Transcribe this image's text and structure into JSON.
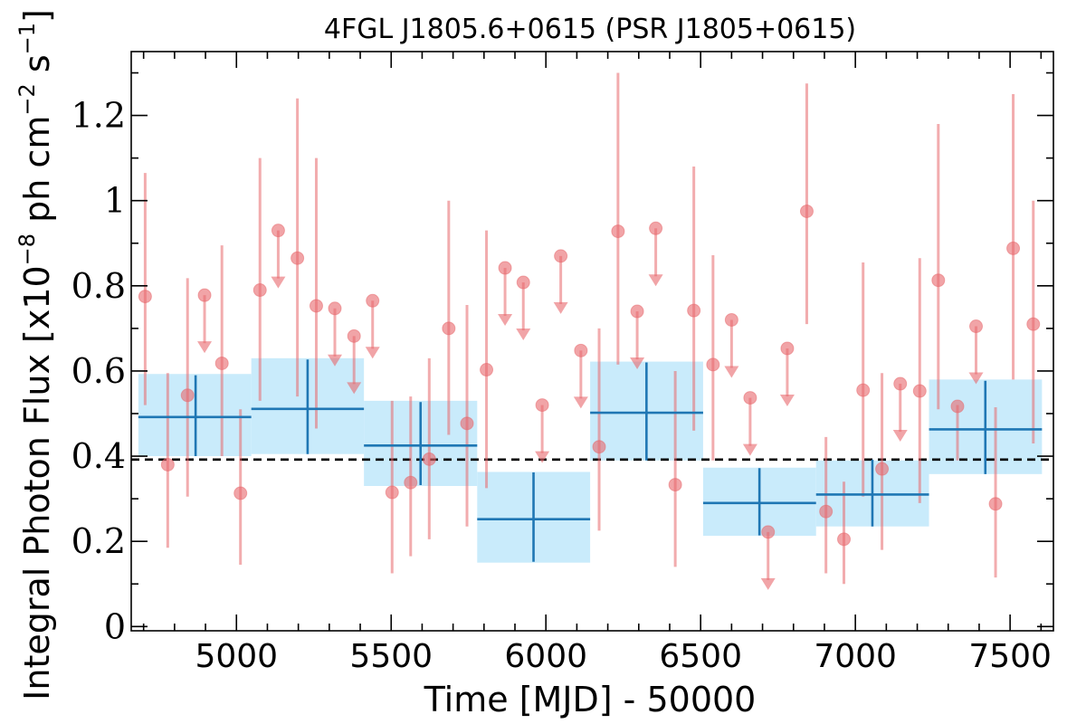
{
  "chart_data": {
    "type": "scatter",
    "title": "4FGL J1805.6+0615 (PSR J1805+0615)",
    "xlabel": "Time [MJD] - 50000",
    "ylabel": "Integral Photon Flux [x10^-8 ph cm^-2 s^-1]",
    "ylabel_parts": {
      "a": "Integral Photon Flux [x10",
      "e1": "−8",
      "b": " ph cm",
      "e2": "−2",
      "c": " s",
      "e3": "−1",
      "d": "]"
    },
    "xlim": [
      4660,
      7640
    ],
    "ylim": [
      -0.01,
      1.35
    ],
    "xticks": [
      5000,
      5500,
      6000,
      6500,
      7000,
      7500
    ],
    "yticks": [
      0,
      0.2,
      0.4,
      0.6,
      0.8,
      1.0,
      1.2
    ],
    "ytick_labels": [
      "0",
      "0.2",
      "0.4",
      "0.6",
      "0.8",
      "1",
      "1.2"
    ],
    "grid": false,
    "average_flux": 0.392,
    "colors": {
      "points": "#e8676c",
      "bins": "#1f77b4",
      "bin_band": "#c9ebfb",
      "average_line": "#000000"
    },
    "short_bins": {
      "detections": [
        {
          "x": 4705,
          "y": 0.775,
          "ylo": 0.52,
          "yhi": 1.065
        },
        {
          "x": 4778,
          "y": 0.38,
          "ylo": 0.185,
          "yhi": 0.595
        },
        {
          "x": 4842,
          "y": 0.543,
          "ylo": 0.305,
          "yhi": 0.818
        },
        {
          "x": 4953,
          "y": 0.618,
          "ylo": 0.4,
          "yhi": 0.895
        },
        {
          "x": 5013,
          "y": 0.313,
          "ylo": 0.145,
          "yhi": 0.51
        },
        {
          "x": 5076,
          "y": 0.79,
          "ylo": 0.53,
          "yhi": 1.1
        },
        {
          "x": 5197,
          "y": 0.865,
          "ylo": 0.54,
          "yhi": 1.24
        },
        {
          "x": 5258,
          "y": 0.753,
          "ylo": 0.465,
          "yhi": 1.1
        },
        {
          "x": 5503,
          "y": 0.315,
          "ylo": 0.125,
          "yhi": 0.53
        },
        {
          "x": 5563,
          "y": 0.338,
          "ylo": 0.165,
          "yhi": 0.54
        },
        {
          "x": 5623,
          "y": 0.393,
          "ylo": 0.205,
          "yhi": 0.63
        },
        {
          "x": 5686,
          "y": 0.7,
          "ylo": 0.45,
          "yhi": 1.0
        },
        {
          "x": 5745,
          "y": 0.477,
          "ylo": 0.235,
          "yhi": 0.755
        },
        {
          "x": 5808,
          "y": 0.603,
          "ylo": 0.325,
          "yhi": 0.93
        },
        {
          "x": 6172,
          "y": 0.422,
          "ylo": 0.225,
          "yhi": 0.7
        },
        {
          "x": 6233,
          "y": 0.928,
          "ylo": 0.615,
          "yhi": 1.3
        },
        {
          "x": 6418,
          "y": 0.333,
          "ylo": 0.14,
          "yhi": 0.6
        },
        {
          "x": 6478,
          "y": 0.742,
          "ylo": 0.46,
          "yhi": 1.08
        },
        {
          "x": 6540,
          "y": 0.615,
          "ylo": 0.39,
          "yhi": 0.872
        },
        {
          "x": 6843,
          "y": 0.975,
          "ylo": 0.71,
          "yhi": 1.275
        },
        {
          "x": 6905,
          "y": 0.27,
          "ylo": 0.125,
          "yhi": 0.445
        },
        {
          "x": 6963,
          "y": 0.205,
          "ylo": 0.1,
          "yhi": 0.34
        },
        {
          "x": 7025,
          "y": 0.555,
          "ylo": 0.305,
          "yhi": 0.855
        },
        {
          "x": 7086,
          "y": 0.37,
          "ylo": 0.18,
          "yhi": 0.595
        },
        {
          "x": 7208,
          "y": 0.553,
          "ylo": 0.29,
          "yhi": 0.865
        },
        {
          "x": 7268,
          "y": 0.813,
          "ylo": 0.51,
          "yhi": 1.18
        },
        {
          "x": 7330,
          "y": 0.517,
          "ylo": 0.39,
          "yhi": 0.52
        },
        {
          "x": 7453,
          "y": 0.288,
          "ylo": 0.115,
          "yhi": 0.515
        },
        {
          "x": 7510,
          "y": 0.888,
          "ylo": 0.58,
          "yhi": 1.25
        },
        {
          "x": 7575,
          "y": 0.71,
          "ylo": 0.43,
          "yhi": 1.0
        }
      ],
      "upper_limits": [
        {
          "x": 4897,
          "y": 0.778
        },
        {
          "x": 5135,
          "y": 0.93
        },
        {
          "x": 5318,
          "y": 0.747
        },
        {
          "x": 5380,
          "y": 0.682
        },
        {
          "x": 5440,
          "y": 0.765
        },
        {
          "x": 5868,
          "y": 0.842
        },
        {
          "x": 5927,
          "y": 0.808
        },
        {
          "x": 5988,
          "y": 0.52
        },
        {
          "x": 6048,
          "y": 0.87
        },
        {
          "x": 6113,
          "y": 0.648
        },
        {
          "x": 6295,
          "y": 0.74
        },
        {
          "x": 6355,
          "y": 0.935
        },
        {
          "x": 6600,
          "y": 0.72
        },
        {
          "x": 6660,
          "y": 0.537
        },
        {
          "x": 6718,
          "y": 0.222
        },
        {
          "x": 6780,
          "y": 0.653
        },
        {
          "x": 7145,
          "y": 0.57
        },
        {
          "x": 7390,
          "y": 0.705
        }
      ]
    },
    "long_bins": [
      {
        "x0": 4683,
        "x1": 5048,
        "xc": 4868,
        "y": 0.492,
        "ylo": 0.4,
        "yhi": 0.59,
        "band_lo": 0.4,
        "band_hi": 0.593
      },
      {
        "x0": 5048,
        "x1": 5412,
        "xc": 5230,
        "y": 0.511,
        "ylo": 0.405,
        "yhi": 0.627,
        "band_lo": 0.405,
        "band_hi": 0.63
      },
      {
        "x0": 5412,
        "x1": 5778,
        "xc": 5595,
        "y": 0.425,
        "ylo": 0.332,
        "yhi": 0.527,
        "band_lo": 0.33,
        "band_hi": 0.53
      },
      {
        "x0": 5778,
        "x1": 6143,
        "xc": 5960,
        "y": 0.252,
        "ylo": 0.152,
        "yhi": 0.362,
        "band_lo": 0.15,
        "band_hi": 0.363
      },
      {
        "x0": 6143,
        "x1": 6508,
        "xc": 6325,
        "y": 0.502,
        "ylo": 0.39,
        "yhi": 0.62,
        "band_lo": 0.39,
        "band_hi": 0.622
      },
      {
        "x0": 6508,
        "x1": 6873,
        "xc": 6690,
        "y": 0.29,
        "ylo": 0.214,
        "yhi": 0.372,
        "band_lo": 0.213,
        "band_hi": 0.373
      },
      {
        "x0": 6873,
        "x1": 7238,
        "xc": 7055,
        "y": 0.31,
        "ylo": 0.235,
        "yhi": 0.392,
        "band_lo": 0.235,
        "band_hi": 0.39
      },
      {
        "x0": 7238,
        "x1": 7603,
        "xc": 7420,
        "y": 0.463,
        "ylo": 0.358,
        "yhi": 0.577,
        "band_lo": 0.358,
        "band_hi": 0.58
      }
    ]
  }
}
